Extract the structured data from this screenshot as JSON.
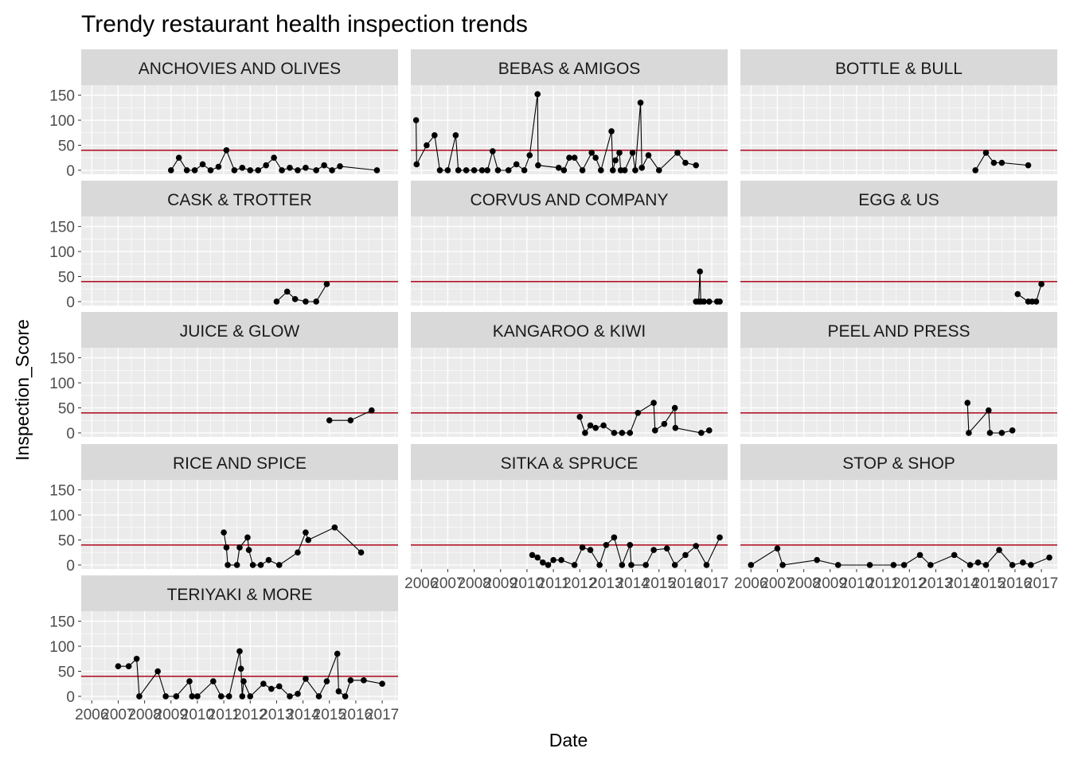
{
  "chart_data": {
    "type": "line",
    "title": "Trendy restaurant health inspection trends",
    "xlabel": "Date",
    "ylabel": "Inspection_Score",
    "x_ticks": [
      "2006",
      "2007",
      "2008",
      "2009",
      "2010",
      "2011",
      "2012",
      "2013",
      "2014",
      "2015",
      "2016",
      "2017"
    ],
    "y_ticks": [
      0,
      50,
      100,
      150
    ],
    "xlim": [
      2005.6,
      2017.6
    ],
    "ylim": [
      -8,
      170
    ],
    "reference_line": {
      "y": 40,
      "color": "#b2182b"
    },
    "grid": true,
    "colors": {
      "panel_bg": "#ebebeb",
      "grid": "#ffffff",
      "strip_bg": "#d9d9d9",
      "line": "#000000",
      "point": "#000000",
      "axis_text": "#4d4d4d",
      "tick": "#333333"
    },
    "facets": [
      {
        "name": "ANCHOVIES AND OLIVES",
        "points": [
          [
            2009.0,
            0
          ],
          [
            2009.3,
            25
          ],
          [
            2009.6,
            0
          ],
          [
            2009.9,
            0
          ],
          [
            2010.2,
            12
          ],
          [
            2010.5,
            0
          ],
          [
            2010.8,
            7
          ],
          [
            2011.1,
            40
          ],
          [
            2011.4,
            0
          ],
          [
            2011.7,
            5
          ],
          [
            2012.0,
            0
          ],
          [
            2012.3,
            0
          ],
          [
            2012.6,
            10
          ],
          [
            2012.9,
            25
          ],
          [
            2013.2,
            0
          ],
          [
            2013.5,
            5
          ],
          [
            2013.8,
            0
          ],
          [
            2014.1,
            5
          ],
          [
            2014.5,
            0
          ],
          [
            2014.8,
            10
          ],
          [
            2015.1,
            0
          ],
          [
            2015.4,
            8
          ],
          [
            2016.8,
            0
          ]
        ]
      },
      {
        "name": "BEBAS & AMIGOS",
        "points": [
          [
            2005.8,
            100
          ],
          [
            2005.82,
            12
          ],
          [
            2006.2,
            50
          ],
          [
            2006.5,
            70
          ],
          [
            2006.7,
            0
          ],
          [
            2007.0,
            0
          ],
          [
            2007.3,
            70
          ],
          [
            2007.4,
            0
          ],
          [
            2007.7,
            0
          ],
          [
            2008.0,
            0
          ],
          [
            2008.3,
            0
          ],
          [
            2008.5,
            0
          ],
          [
            2008.7,
            38
          ],
          [
            2008.9,
            0
          ],
          [
            2009.3,
            0
          ],
          [
            2009.6,
            12
          ],
          [
            2009.9,
            0
          ],
          [
            2010.1,
            30
          ],
          [
            2010.4,
            152
          ],
          [
            2010.42,
            10
          ],
          [
            2011.2,
            5
          ],
          [
            2011.4,
            0
          ],
          [
            2011.6,
            25
          ],
          [
            2011.8,
            25
          ],
          [
            2012.1,
            0
          ],
          [
            2012.45,
            35
          ],
          [
            2012.6,
            25
          ],
          [
            2012.8,
            0
          ],
          [
            2013.2,
            78
          ],
          [
            2013.25,
            0
          ],
          [
            2013.35,
            20
          ],
          [
            2013.5,
            35
          ],
          [
            2013.55,
            0
          ],
          [
            2013.7,
            0
          ],
          [
            2014.0,
            35
          ],
          [
            2014.1,
            0
          ],
          [
            2014.3,
            135
          ],
          [
            2014.35,
            5
          ],
          [
            2014.6,
            30
          ],
          [
            2015.0,
            0
          ],
          [
            2015.7,
            35
          ],
          [
            2016.0,
            15
          ],
          [
            2016.4,
            10
          ]
        ]
      },
      {
        "name": "BOTTLE & BULL",
        "points": [
          [
            2014.5,
            0
          ],
          [
            2014.9,
            35
          ],
          [
            2015.2,
            15
          ],
          [
            2015.5,
            15
          ],
          [
            2016.5,
            10
          ]
        ]
      },
      {
        "name": "CASK & TROTTER",
        "points": [
          [
            2013.0,
            0
          ],
          [
            2013.4,
            20
          ],
          [
            2013.7,
            5
          ],
          [
            2014.1,
            0
          ],
          [
            2014.5,
            0
          ],
          [
            2014.9,
            35
          ]
        ]
      },
      {
        "name": "CORVUS AND COMPANY",
        "points": [
          [
            2016.4,
            0
          ],
          [
            2016.5,
            0
          ],
          [
            2016.55,
            60
          ],
          [
            2016.58,
            0
          ],
          [
            2016.7,
            0
          ],
          [
            2016.9,
            0
          ],
          [
            2017.2,
            0
          ],
          [
            2017.3,
            0
          ]
        ]
      },
      {
        "name": "EGG & US",
        "points": [
          [
            2016.1,
            15
          ],
          [
            2016.5,
            0
          ],
          [
            2016.65,
            0
          ],
          [
            2016.8,
            0
          ],
          [
            2017.0,
            35
          ]
        ]
      },
      {
        "name": "JUICE & GLOW",
        "points": [
          [
            2015.0,
            25
          ],
          [
            2015.8,
            25
          ],
          [
            2016.6,
            45
          ]
        ]
      },
      {
        "name": "KANGAROO & KIWI",
        "points": [
          [
            2012.0,
            32
          ],
          [
            2012.2,
            0
          ],
          [
            2012.4,
            15
          ],
          [
            2012.6,
            10
          ],
          [
            2012.9,
            15
          ],
          [
            2013.3,
            0
          ],
          [
            2013.6,
            0
          ],
          [
            2013.9,
            0
          ],
          [
            2014.2,
            40
          ],
          [
            2014.8,
            60
          ],
          [
            2014.85,
            5
          ],
          [
            2015.2,
            18
          ],
          [
            2015.6,
            50
          ],
          [
            2015.62,
            10
          ],
          [
            2016.6,
            0
          ],
          [
            2016.9,
            5
          ]
        ]
      },
      {
        "name": "PEEL AND PRESS",
        "points": [
          [
            2014.2,
            60
          ],
          [
            2014.25,
            0
          ],
          [
            2015.0,
            45
          ],
          [
            2015.05,
            0
          ],
          [
            2015.5,
            0
          ],
          [
            2015.9,
            5
          ]
        ]
      },
      {
        "name": "RICE AND SPICE",
        "points": [
          [
            2011.0,
            65
          ],
          [
            2011.1,
            35
          ],
          [
            2011.15,
            0
          ],
          [
            2011.5,
            0
          ],
          [
            2011.6,
            35
          ],
          [
            2011.9,
            55
          ],
          [
            2011.95,
            30
          ],
          [
            2012.1,
            0
          ],
          [
            2012.4,
            0
          ],
          [
            2012.7,
            10
          ],
          [
            2013.1,
            0
          ],
          [
            2013.8,
            25
          ],
          [
            2014.1,
            65
          ],
          [
            2014.2,
            50
          ],
          [
            2015.2,
            75
          ],
          [
            2016.2,
            25
          ]
        ]
      },
      {
        "name": "SITKA & SPRUCE",
        "points": [
          [
            2010.2,
            20
          ],
          [
            2010.4,
            15
          ],
          [
            2010.6,
            5
          ],
          [
            2010.8,
            0
          ],
          [
            2011.0,
            10
          ],
          [
            2011.3,
            10
          ],
          [
            2011.8,
            0
          ],
          [
            2012.1,
            35
          ],
          [
            2012.4,
            30
          ],
          [
            2012.75,
            0
          ],
          [
            2013.0,
            40
          ],
          [
            2013.3,
            55
          ],
          [
            2013.6,
            0
          ],
          [
            2013.9,
            40
          ],
          [
            2013.95,
            0
          ],
          [
            2014.5,
            0
          ],
          [
            2014.8,
            30
          ],
          [
            2015.3,
            33
          ],
          [
            2015.6,
            0
          ],
          [
            2016.0,
            20
          ],
          [
            2016.4,
            38
          ],
          [
            2016.8,
            0
          ],
          [
            2017.3,
            55
          ]
        ]
      },
      {
        "name": "STOP & SHOP",
        "points": [
          [
            2006.0,
            0
          ],
          [
            2007.0,
            33
          ],
          [
            2007.2,
            0
          ],
          [
            2008.5,
            10
          ],
          [
            2009.3,
            0
          ],
          [
            2010.5,
            0
          ],
          [
            2011.4,
            0
          ],
          [
            2011.8,
            0
          ],
          [
            2012.4,
            20
          ],
          [
            2012.8,
            0
          ],
          [
            2013.7,
            20
          ],
          [
            2014.3,
            0
          ],
          [
            2014.6,
            5
          ],
          [
            2014.9,
            0
          ],
          [
            2015.4,
            30
          ],
          [
            2015.9,
            0
          ],
          [
            2016.3,
            5
          ],
          [
            2016.6,
            0
          ],
          [
            2017.3,
            15
          ]
        ]
      },
      {
        "name": "TERIYAKI & MORE",
        "points": [
          [
            2007.0,
            60
          ],
          [
            2007.4,
            60
          ],
          [
            2007.7,
            75
          ],
          [
            2007.8,
            0
          ],
          [
            2008.5,
            50
          ],
          [
            2008.8,
            0
          ],
          [
            2009.2,
            0
          ],
          [
            2009.7,
            30
          ],
          [
            2009.8,
            0
          ],
          [
            2010.0,
            0
          ],
          [
            2010.6,
            30
          ],
          [
            2010.9,
            0
          ],
          [
            2011.2,
            0
          ],
          [
            2011.6,
            90
          ],
          [
            2011.65,
            55
          ],
          [
            2011.7,
            0
          ],
          [
            2011.75,
            30
          ],
          [
            2012.0,
            0
          ],
          [
            2012.5,
            25
          ],
          [
            2012.8,
            15
          ],
          [
            2013.1,
            20
          ],
          [
            2013.5,
            0
          ],
          [
            2013.8,
            5
          ],
          [
            2014.1,
            35
          ],
          [
            2014.6,
            0
          ],
          [
            2014.9,
            30
          ],
          [
            2015.3,
            85
          ],
          [
            2015.35,
            10
          ],
          [
            2015.6,
            0
          ],
          [
            2015.8,
            32
          ],
          [
            2016.3,
            32
          ],
          [
            2017.0,
            25
          ]
        ]
      }
    ]
  }
}
